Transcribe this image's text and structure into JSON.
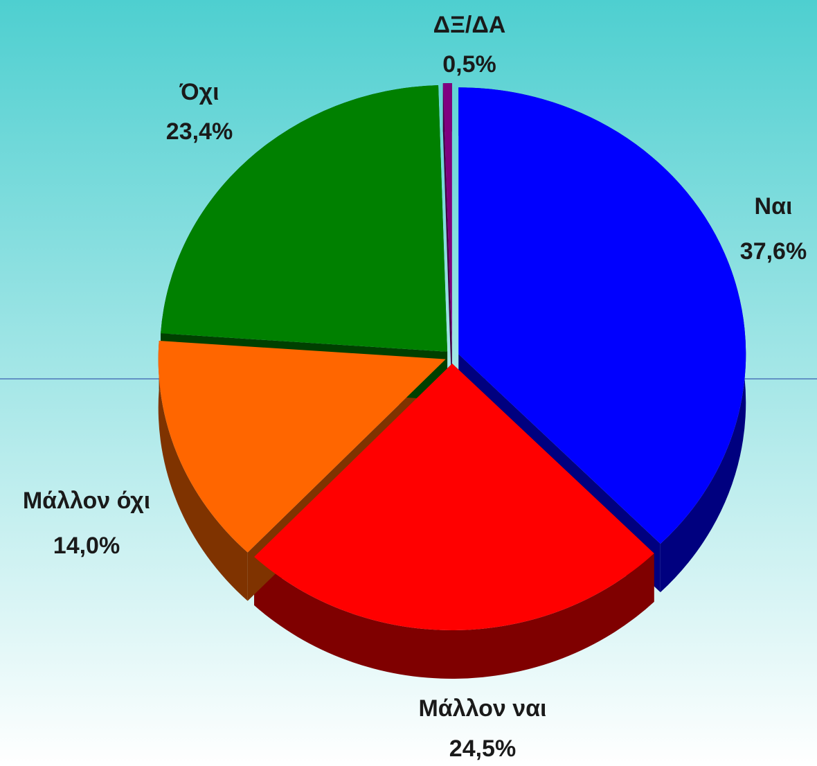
{
  "chart_data": {
    "type": "pie",
    "categories": [
      "Ναι",
      "Μάλλον ναι",
      "Μάλλον όχι",
      "Όχι",
      "ΔΞ/ΔΑ"
    ],
    "values": [
      37.6,
      24.5,
      14.0,
      23.4,
      0.5
    ],
    "value_labels": [
      "37,6%",
      "24,5%",
      "14,0%",
      "23,4%",
      "0,5%"
    ],
    "colors": [
      "#0000ff",
      "#ff0000",
      "#ff6600",
      "#008000",
      "#800080"
    ]
  }
}
